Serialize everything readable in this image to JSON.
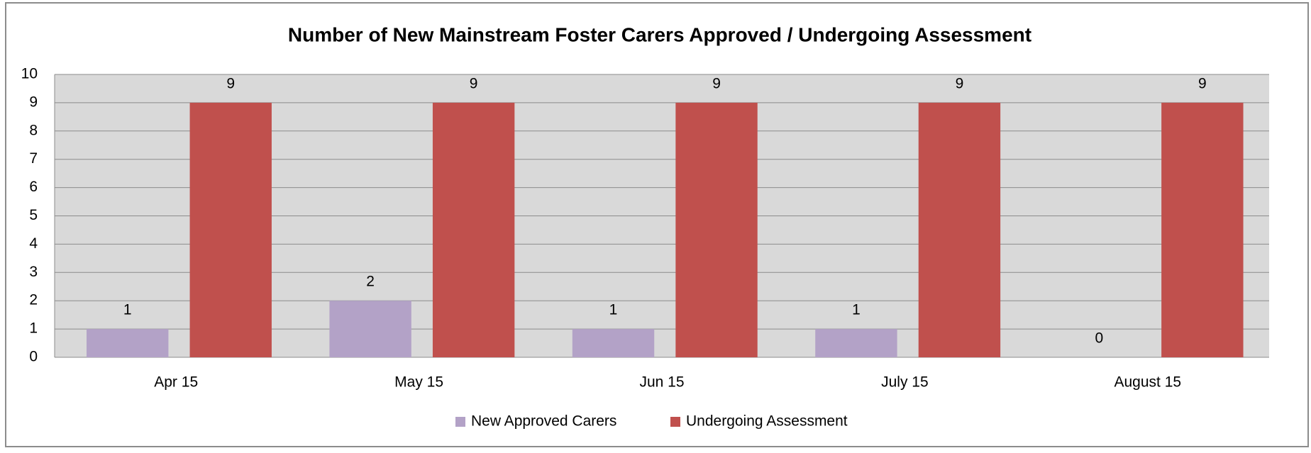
{
  "chart_data": {
    "type": "bar",
    "title": "Number of New Mainstream Foster Carers Approved / Undergoing Assessment",
    "categories": [
      "Apr 15",
      "May 15",
      "Jun 15",
      "July 15",
      "August 15"
    ],
    "series": [
      {
        "name": "New Approved Carers",
        "color": "#b3a2c7",
        "values": [
          1,
          2,
          1,
          1,
          0
        ]
      },
      {
        "name": "Undergoing Assessment",
        "color": "#c0504d",
        "values": [
          9,
          9,
          9,
          9,
          9
        ]
      }
    ],
    "ylim": [
      0,
      10
    ],
    "yticks": [
      0,
      1,
      2,
      3,
      4,
      5,
      6,
      7,
      8,
      9,
      10
    ],
    "grid": true,
    "legend": "bottom"
  }
}
